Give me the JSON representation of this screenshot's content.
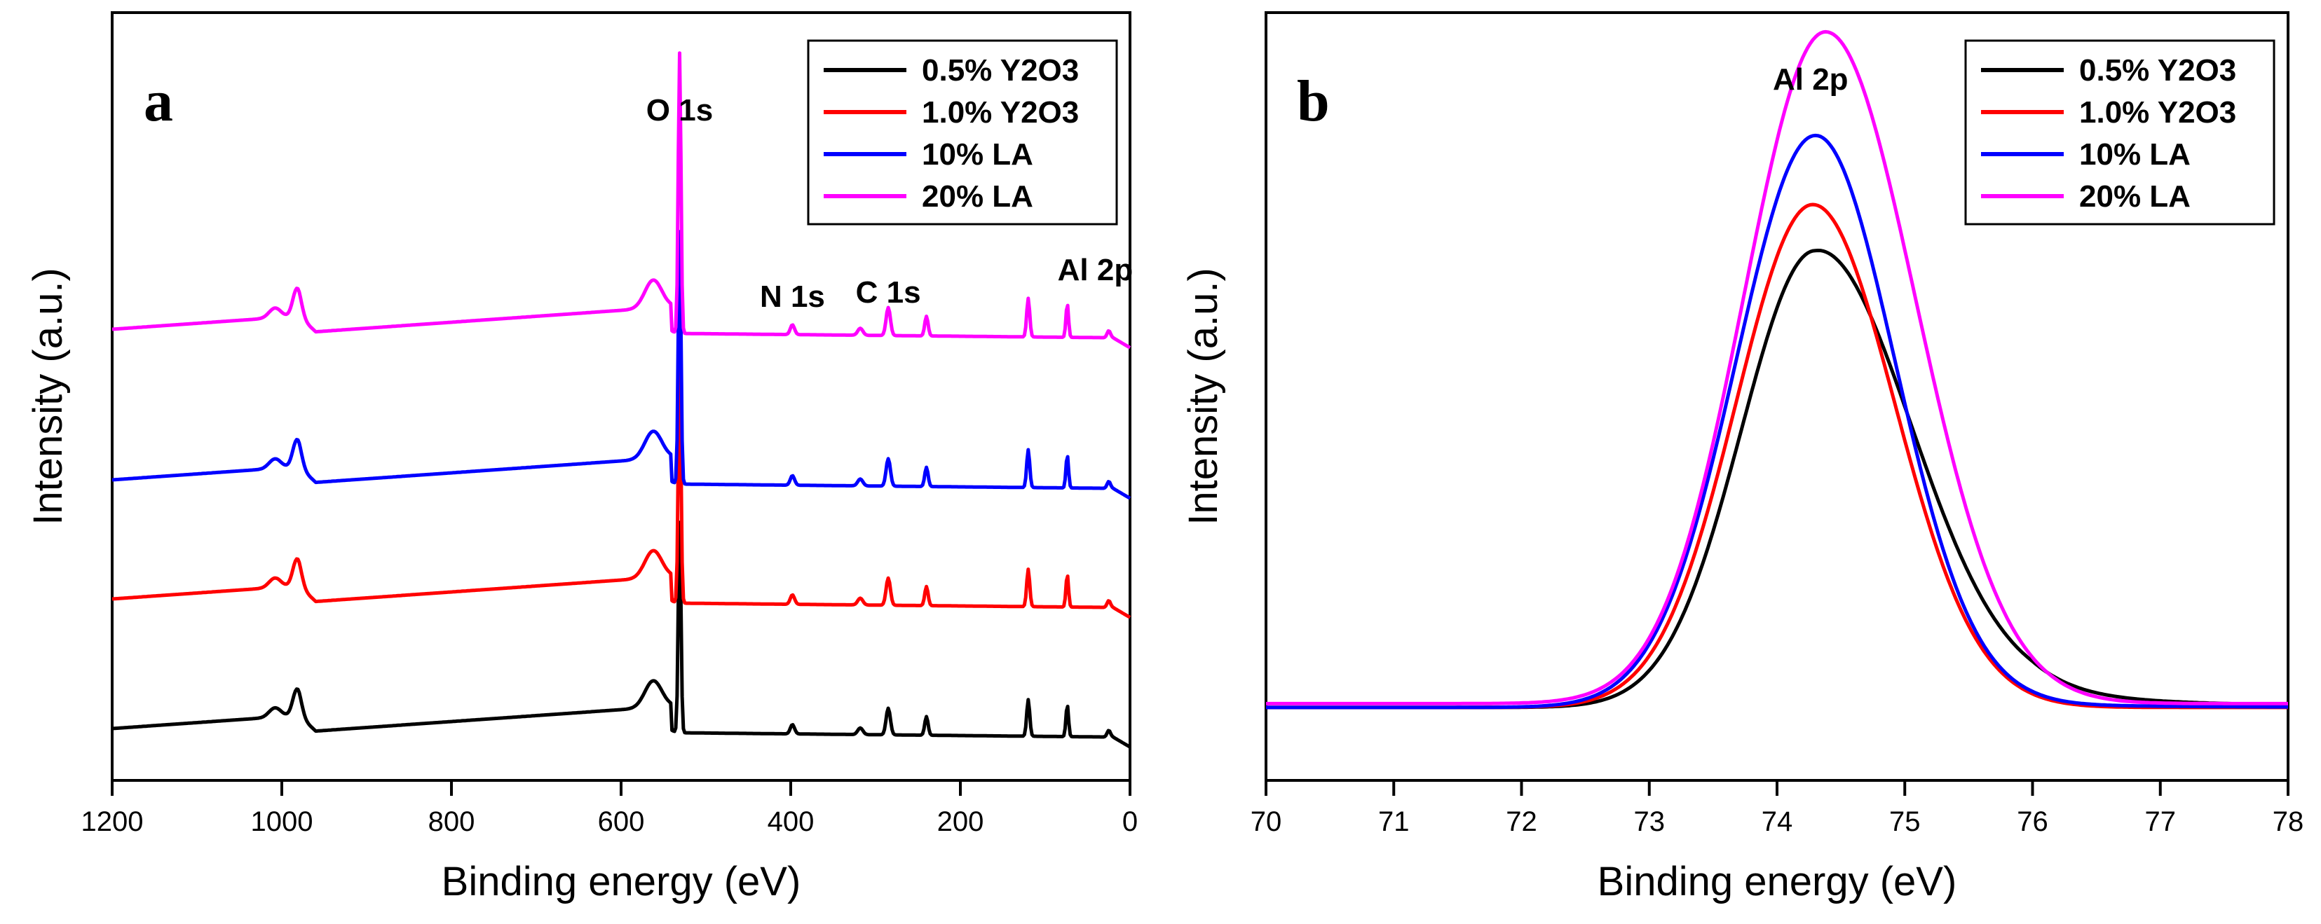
{
  "chart_data": [
    {
      "type": "line",
      "panel": "a",
      "title": "",
      "xlabel": "Binding energy (eV)",
      "ylabel": "Intensity (a.u.)",
      "xlim": [
        1200,
        0
      ],
      "x_reversed": true,
      "xticks": [
        1200,
        1000,
        800,
        600,
        400,
        200,
        0
      ],
      "y_ticks_shown": false,
      "legend_position": "top-right",
      "peak_labels": [
        {
          "text": "O 1s",
          "x": 531
        },
        {
          "text": "N 1s",
          "x": 398
        },
        {
          "text": "C 1s",
          "x": 285
        },
        {
          "text": "Al 2p",
          "x": 74
        }
      ],
      "series": [
        {
          "name": "0.5% Y2O3",
          "color": "#000000",
          "offset": 0,
          "peak_scale": 0.75
        },
        {
          "name": "1.0% Y2O3",
          "color": "#ff0000",
          "offset": 185,
          "peak_scale": 0.85
        },
        {
          "name": "10% LA",
          "color": "#0000ff",
          "offset": 355,
          "peak_scale": 0.9
        },
        {
          "name": "20% LA",
          "color": "#ff00ff",
          "offset": 570,
          "peak_scale": 1.0
        }
      ]
    },
    {
      "type": "line",
      "panel": "b",
      "title": "",
      "xlabel": "Binding energy (eV)",
      "ylabel": "Intensity (a.u.)",
      "xlim": [
        70,
        78
      ],
      "xticks": [
        70,
        71,
        72,
        73,
        74,
        75,
        76,
        77,
        78
      ],
      "y_ticks_shown": false,
      "legend_position": "top-right",
      "peak_labels": [
        {
          "text": "Al 2p",
          "x": 74.35
        }
      ],
      "ylim": [
        0,
        1
      ],
      "series": [
        {
          "name": "0.5% Y2O3",
          "color": "#000000",
          "center": 74.3,
          "height": 0.595,
          "sigma_left": 0.58,
          "sigma_right": 0.74,
          "baseline": 0.095,
          "tail": 0.02
        },
        {
          "name": "1.0% Y2O3",
          "color": "#ff0000",
          "center": 74.28,
          "height": 0.655,
          "sigma_left": 0.6,
          "sigma_right": 0.64,
          "baseline": 0.095,
          "tail": 0
        },
        {
          "name": "10% LA",
          "color": "#0000ff",
          "center": 74.3,
          "height": 0.745,
          "sigma_left": 0.62,
          "sigma_right": 0.62,
          "baseline": 0.095,
          "tail": 0.004
        },
        {
          "name": "20% LA",
          "color": "#ff00ff",
          "center": 74.38,
          "height": 0.875,
          "sigma_left": 0.64,
          "sigma_right": 0.7,
          "baseline": 0.1,
          "tail": 0
        }
      ]
    }
  ]
}
